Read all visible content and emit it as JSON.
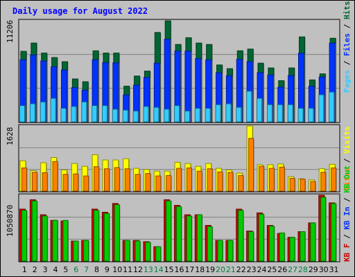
{
  "title": "Daily usage for August 2022",
  "colors": {
    "background": "#c0c0c0",
    "title": "#0000ff",
    "hits": "#006633",
    "files": "#0033ff",
    "pages": "#33ccff",
    "visits": "#ffff00",
    "sites": "#ff8000",
    "kb_in": "#00cc00",
    "kb_out": "#006600",
    "kb_f": "#cc0000",
    "weekend_label": "#008040",
    "weekday_label": "#000000"
  },
  "legends": {
    "top": [
      {
        "text": "Pages",
        "color": "#33ccff"
      },
      {
        "text": " / ",
        "color": "#000000"
      },
      {
        "text": "Files",
        "color": "#0033ff"
      },
      {
        "text": " / ",
        "color": "#000000"
      },
      {
        "text": "Hits",
        "color": "#006633"
      }
    ],
    "middle": [
      {
        "text": "Sites",
        "color": "#ff8000"
      },
      {
        "text": " / ",
        "color": "#000000"
      },
      {
        "text": "Visits",
        "color": "#ffff00"
      }
    ],
    "bottom": [
      {
        "text": "KB F",
        "color": "#cc0000"
      },
      {
        "text": " / ",
        "color": "#000000"
      },
      {
        "text": "KB In",
        "color": "#0033ff"
      },
      {
        "text": " / ",
        "color": "#000000"
      },
      {
        "text": "KB Out",
        "color": "#00cc00"
      }
    ]
  },
  "chart_data": [
    {
      "type": "bar",
      "panel": "requests",
      "max_label": "11206",
      "ylim": [
        0,
        11206
      ],
      "categories": [
        "1",
        "2",
        "3",
        "4",
        "5",
        "6",
        "7",
        "8",
        "9",
        "10",
        "11",
        "12",
        "13",
        "14",
        "15",
        "16",
        "17",
        "18",
        "19",
        "20",
        "21",
        "22",
        "23",
        "24",
        "25",
        "26",
        "27",
        "28",
        "29",
        "30",
        "31"
      ],
      "series": [
        {
          "name": "Hits",
          "values": [
            7820,
            8740,
            7630,
            7130,
            6670,
            4760,
            4450,
            7880,
            7630,
            7630,
            3960,
            5080,
            5630,
            9910,
            11206,
            8580,
            9330,
            8740,
            8580,
            6310,
            5900,
            7880,
            8070,
            6510,
            5980,
            4570,
            5980,
            9420,
            4650,
            5320,
            9270
          ]
        },
        {
          "name": "Files",
          "values": [
            6890,
            7420,
            6750,
            6110,
            5760,
            3800,
            3520,
            6890,
            6560,
            6540,
            2990,
            4070,
            4930,
            6510,
            9170,
            7850,
            7850,
            7010,
            6880,
            5450,
            5120,
            6940,
            6680,
            5460,
            5200,
            3850,
            5140,
            7620,
            3950,
            4980,
            8740
          ]
        },
        {
          "name": "Pages",
          "values": [
            1800,
            2000,
            2200,
            2600,
            1500,
            1700,
            2200,
            1800,
            1800,
            1400,
            1300,
            1200,
            1700,
            1600,
            1400,
            1800,
            1200,
            1500,
            1500,
            1900,
            2000,
            1600,
            3400,
            2600,
            1900,
            1900,
            1900,
            1500,
            1500,
            3000,
            3300
          ]
        }
      ],
      "weekend_days": [
        "6",
        "7",
        "13",
        "14",
        "20",
        "21",
        "27",
        "28"
      ]
    },
    {
      "type": "bar",
      "panel": "visitors",
      "max_label": "1628",
      "ylim": [
        0,
        1628
      ],
      "categories": [
        "1",
        "2",
        "3",
        "4",
        "5",
        "6",
        "7",
        "8",
        "9",
        "10",
        "11",
        "12",
        "13",
        "14",
        "15",
        "16",
        "17",
        "18",
        "19",
        "20",
        "21",
        "22",
        "23",
        "24",
        "25",
        "26",
        "27",
        "28",
        "29",
        "30",
        "31"
      ],
      "series": [
        {
          "name": "Visits",
          "values": [
            760,
            510,
            710,
            840,
            530,
            690,
            620,
            910,
            780,
            780,
            810,
            570,
            540,
            500,
            500,
            720,
            690,
            620,
            690,
            570,
            530,
            450,
            1628,
            660,
            660,
            680,
            360,
            310,
            280,
            560,
            670
          ]
        },
        {
          "name": "Sites",
          "values": [
            580,
            470,
            460,
            740,
            420,
            430,
            380,
            610,
            560,
            590,
            560,
            420,
            440,
            380,
            390,
            570,
            580,
            500,
            560,
            480,
            470,
            390,
            1320,
            620,
            570,
            600,
            320,
            300,
            240,
            470,
            580
          ]
        }
      ]
    },
    {
      "type": "bar",
      "panel": "volume",
      "max_label": "1050870",
      "ylim": [
        0,
        1050870
      ],
      "categories": [
        "1",
        "2",
        "3",
        "4",
        "5",
        "6",
        "7",
        "8",
        "9",
        "10",
        "11",
        "12",
        "13",
        "14",
        "15",
        "16",
        "17",
        "18",
        "19",
        "20",
        "21",
        "22",
        "23",
        "24",
        "25",
        "26",
        "27",
        "28",
        "29",
        "30",
        "31"
      ],
      "series": [
        {
          "name": "KB F",
          "values": [
            830000,
            980000,
            740000,
            650000,
            640000,
            320000,
            330000,
            830000,
            780000,
            920000,
            330000,
            330000,
            310000,
            230000,
            980000,
            890000,
            740000,
            740000,
            570000,
            330000,
            330000,
            830000,
            480000,
            770000,
            570000,
            440000,
            380000,
            470000,
            610000,
            1050870,
            930000
          ]
        },
        {
          "name": "KB Out",
          "values": [
            810000,
            960000,
            720000,
            650000,
            650000,
            320000,
            330000,
            810000,
            760000,
            900000,
            330000,
            320000,
            300000,
            230000,
            960000,
            870000,
            720000,
            740000,
            550000,
            330000,
            330000,
            810000,
            470000,
            750000,
            560000,
            450000,
            380000,
            470000,
            610000,
            1020000,
            920000
          ]
        }
      ]
    }
  ]
}
